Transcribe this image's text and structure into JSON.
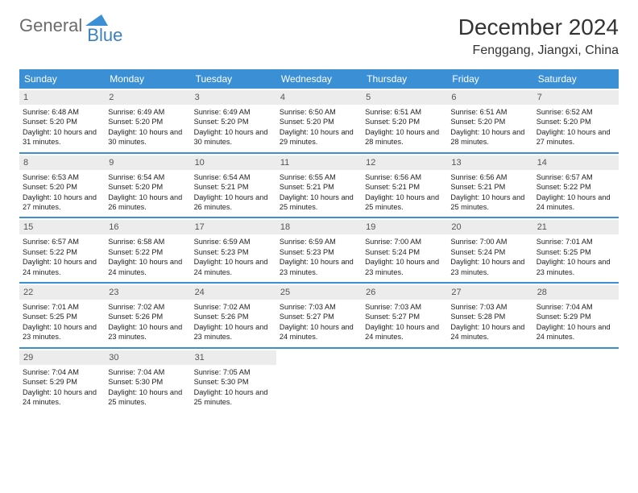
{
  "logo": {
    "text1": "General",
    "text2": "Blue",
    "triangle_color": "#3b8fd4"
  },
  "header": {
    "month_title": "December 2024",
    "location": "Fenggang, Jiangxi, China"
  },
  "colors": {
    "header_bg": "#3b8fd4",
    "header_text": "#ffffff",
    "date_bg": "#ececec",
    "week_divider": "#3b8fd4",
    "body_text": "#222222"
  },
  "day_names": [
    "Sunday",
    "Monday",
    "Tuesday",
    "Wednesday",
    "Thursday",
    "Friday",
    "Saturday"
  ],
  "days": [
    {
      "n": 1,
      "sr": "6:48 AM",
      "ss": "5:20 PM",
      "dl": "10 hours and 31 minutes."
    },
    {
      "n": 2,
      "sr": "6:49 AM",
      "ss": "5:20 PM",
      "dl": "10 hours and 30 minutes."
    },
    {
      "n": 3,
      "sr": "6:49 AM",
      "ss": "5:20 PM",
      "dl": "10 hours and 30 minutes."
    },
    {
      "n": 4,
      "sr": "6:50 AM",
      "ss": "5:20 PM",
      "dl": "10 hours and 29 minutes."
    },
    {
      "n": 5,
      "sr": "6:51 AM",
      "ss": "5:20 PM",
      "dl": "10 hours and 28 minutes."
    },
    {
      "n": 6,
      "sr": "6:51 AM",
      "ss": "5:20 PM",
      "dl": "10 hours and 28 minutes."
    },
    {
      "n": 7,
      "sr": "6:52 AM",
      "ss": "5:20 PM",
      "dl": "10 hours and 27 minutes."
    },
    {
      "n": 8,
      "sr": "6:53 AM",
      "ss": "5:20 PM",
      "dl": "10 hours and 27 minutes."
    },
    {
      "n": 9,
      "sr": "6:54 AM",
      "ss": "5:20 PM",
      "dl": "10 hours and 26 minutes."
    },
    {
      "n": 10,
      "sr": "6:54 AM",
      "ss": "5:21 PM",
      "dl": "10 hours and 26 minutes."
    },
    {
      "n": 11,
      "sr": "6:55 AM",
      "ss": "5:21 PM",
      "dl": "10 hours and 25 minutes."
    },
    {
      "n": 12,
      "sr": "6:56 AM",
      "ss": "5:21 PM",
      "dl": "10 hours and 25 minutes."
    },
    {
      "n": 13,
      "sr": "6:56 AM",
      "ss": "5:21 PM",
      "dl": "10 hours and 25 minutes."
    },
    {
      "n": 14,
      "sr": "6:57 AM",
      "ss": "5:22 PM",
      "dl": "10 hours and 24 minutes."
    },
    {
      "n": 15,
      "sr": "6:57 AM",
      "ss": "5:22 PM",
      "dl": "10 hours and 24 minutes."
    },
    {
      "n": 16,
      "sr": "6:58 AM",
      "ss": "5:22 PM",
      "dl": "10 hours and 24 minutes."
    },
    {
      "n": 17,
      "sr": "6:59 AM",
      "ss": "5:23 PM",
      "dl": "10 hours and 24 minutes."
    },
    {
      "n": 18,
      "sr": "6:59 AM",
      "ss": "5:23 PM",
      "dl": "10 hours and 23 minutes."
    },
    {
      "n": 19,
      "sr": "7:00 AM",
      "ss": "5:24 PM",
      "dl": "10 hours and 23 minutes."
    },
    {
      "n": 20,
      "sr": "7:00 AM",
      "ss": "5:24 PM",
      "dl": "10 hours and 23 minutes."
    },
    {
      "n": 21,
      "sr": "7:01 AM",
      "ss": "5:25 PM",
      "dl": "10 hours and 23 minutes."
    },
    {
      "n": 22,
      "sr": "7:01 AM",
      "ss": "5:25 PM",
      "dl": "10 hours and 23 minutes."
    },
    {
      "n": 23,
      "sr": "7:02 AM",
      "ss": "5:26 PM",
      "dl": "10 hours and 23 minutes."
    },
    {
      "n": 24,
      "sr": "7:02 AM",
      "ss": "5:26 PM",
      "dl": "10 hours and 23 minutes."
    },
    {
      "n": 25,
      "sr": "7:03 AM",
      "ss": "5:27 PM",
      "dl": "10 hours and 24 minutes."
    },
    {
      "n": 26,
      "sr": "7:03 AM",
      "ss": "5:27 PM",
      "dl": "10 hours and 24 minutes."
    },
    {
      "n": 27,
      "sr": "7:03 AM",
      "ss": "5:28 PM",
      "dl": "10 hours and 24 minutes."
    },
    {
      "n": 28,
      "sr": "7:04 AM",
      "ss": "5:29 PM",
      "dl": "10 hours and 24 minutes."
    },
    {
      "n": 29,
      "sr": "7:04 AM",
      "ss": "5:29 PM",
      "dl": "10 hours and 24 minutes."
    },
    {
      "n": 30,
      "sr": "7:04 AM",
      "ss": "5:30 PM",
      "dl": "10 hours and 25 minutes."
    },
    {
      "n": 31,
      "sr": "7:05 AM",
      "ss": "5:30 PM",
      "dl": "10 hours and 25 minutes."
    }
  ],
  "labels": {
    "sunrise": "Sunrise:",
    "sunset": "Sunset:",
    "daylight": "Daylight:"
  },
  "layout": {
    "first_day_offset": 0,
    "weeks": 5,
    "cols": 7
  }
}
